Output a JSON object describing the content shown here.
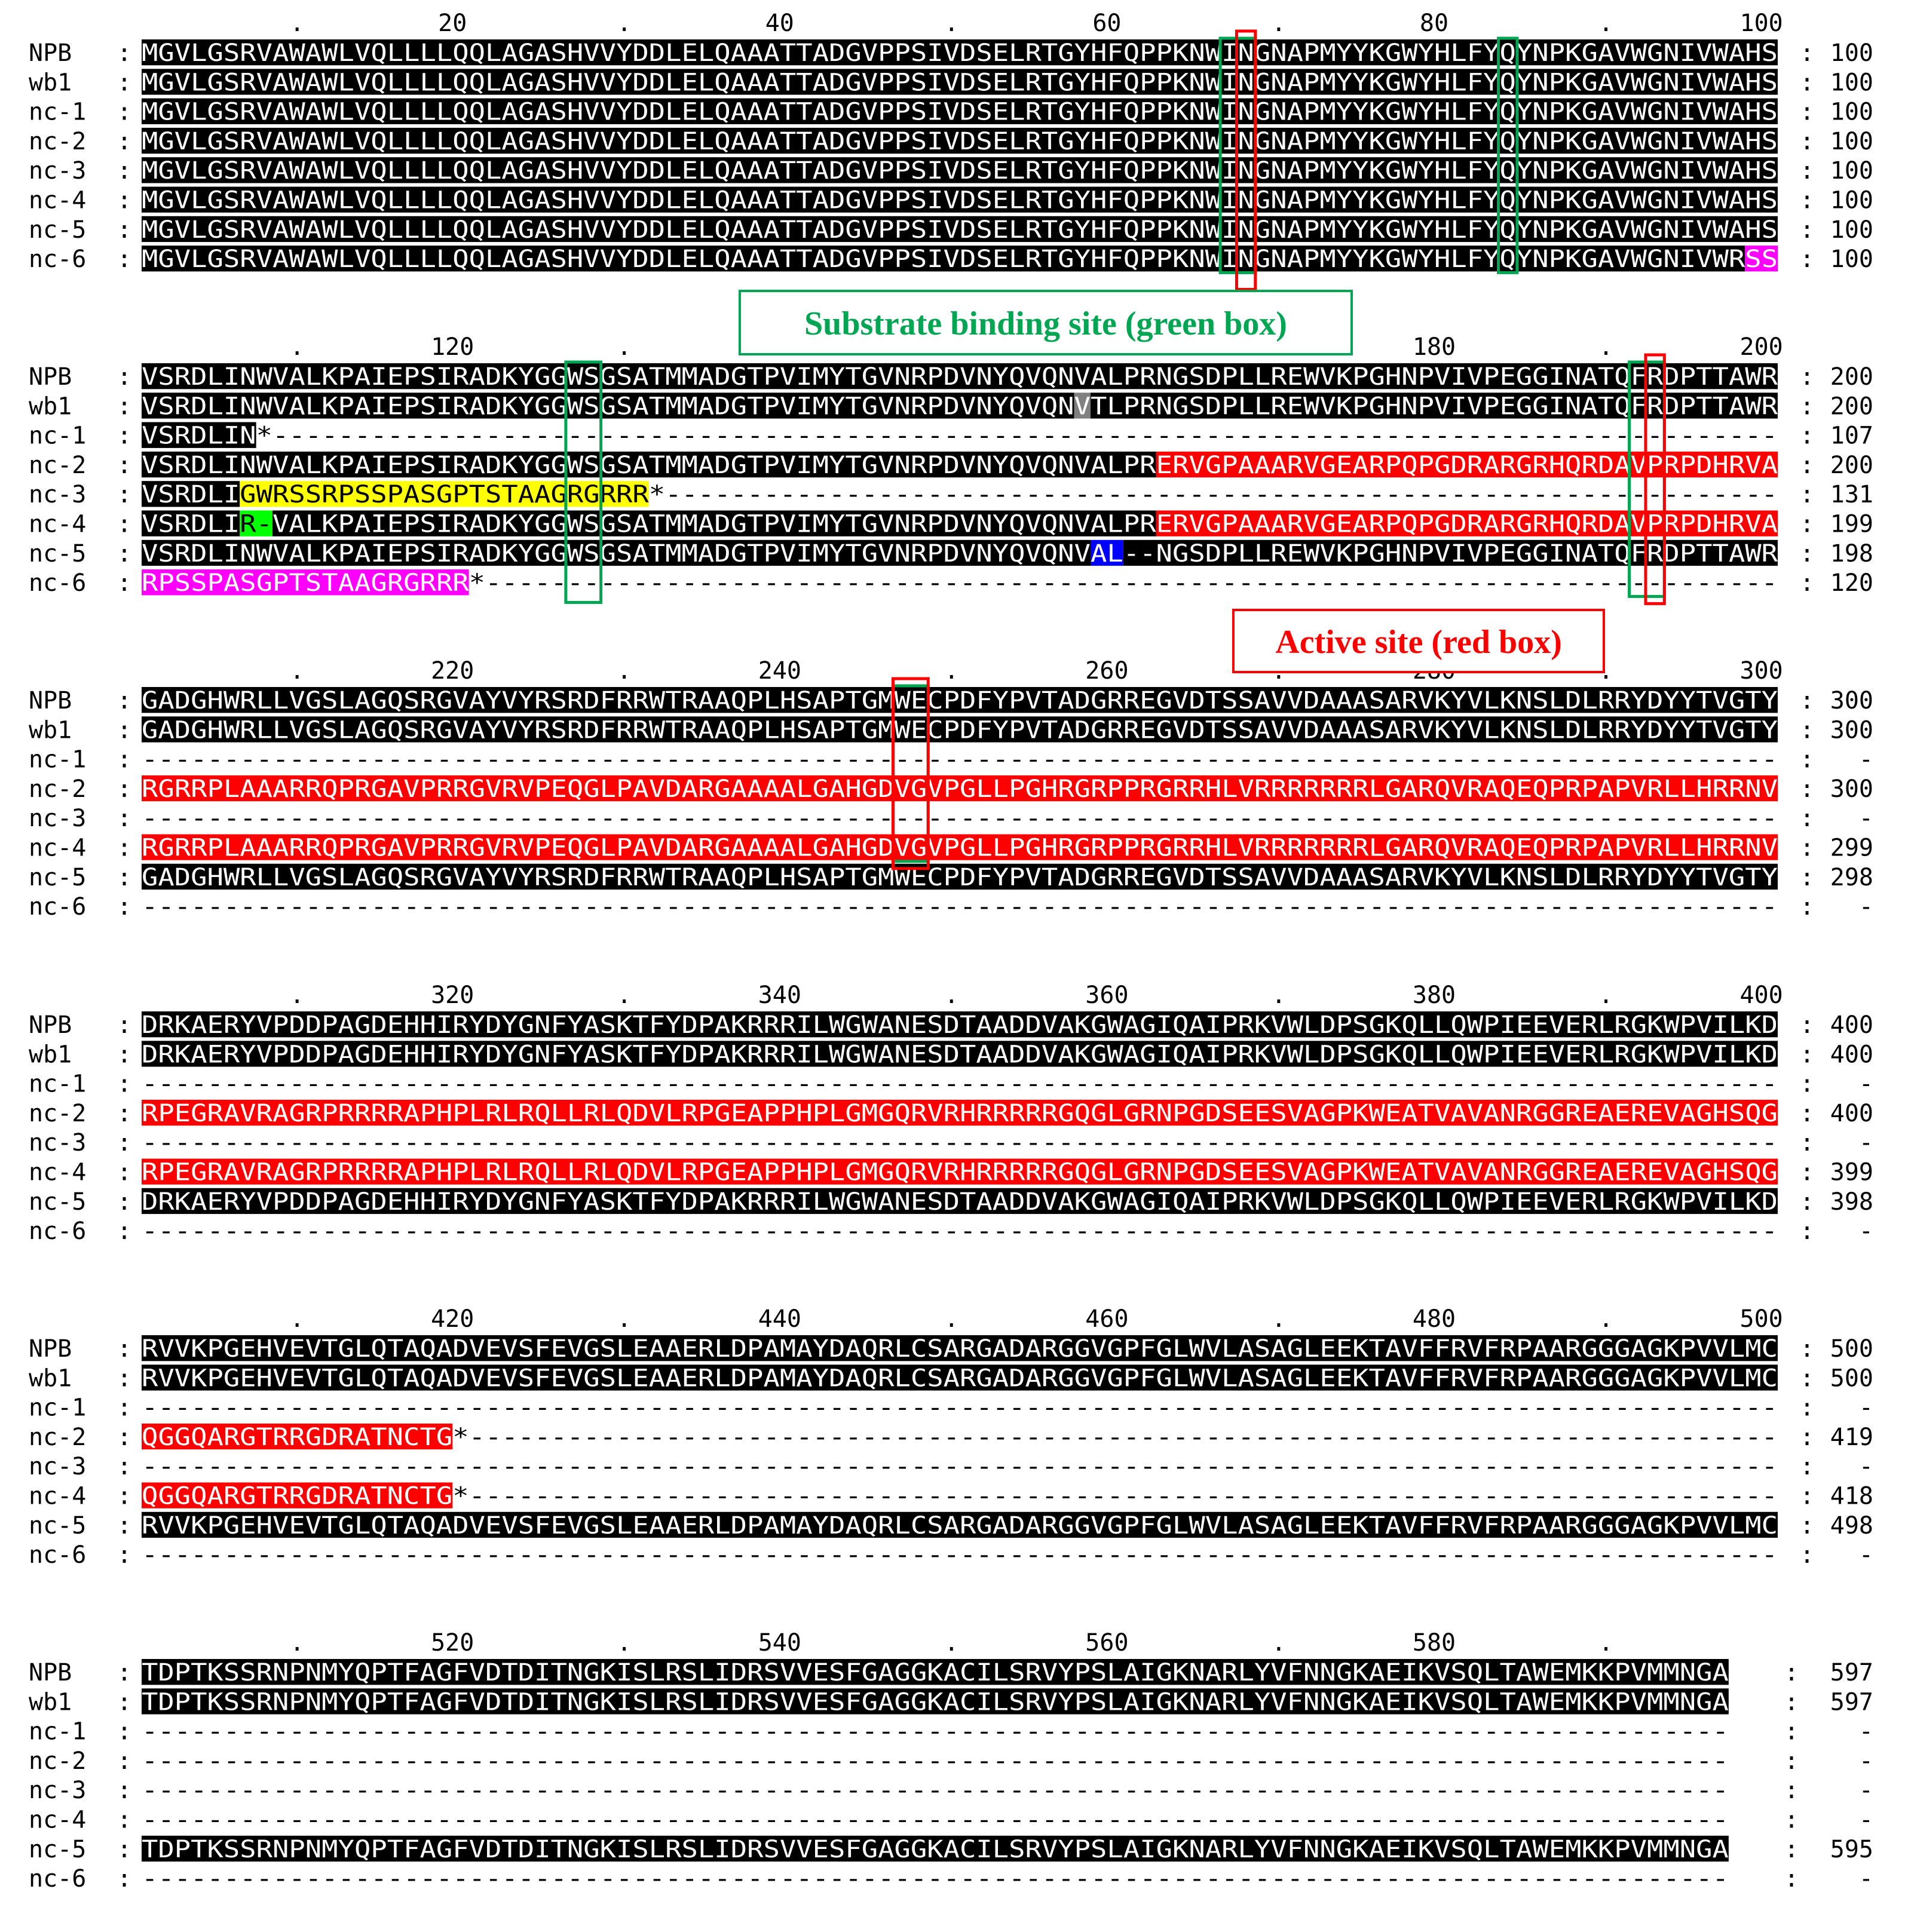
{
  "figure": {
    "labels": {
      "substrate": "Substrate binding site (green box)",
      "active": "Active site (red box)"
    },
    "colors": {
      "conserved_bg": "#000000",
      "conserved_fg": "#ffffff",
      "frameshift": "#ff0000",
      "yellow": "#ffff00",
      "green_highlight": "#00ff00",
      "magenta": "#ff00ff",
      "blue": "#0000ff",
      "gray": "#808080",
      "substrate_box": "#00a651",
      "active_box": "#ff0000"
    },
    "blocks": [
      {
        "ticks": [
          ".",
          "20",
          ".",
          "40",
          ".",
          "60",
          ".",
          "80",
          ".",
          "100"
        ],
        "rows": [
          {
            "name": "NPB",
            "seq": "MGVLGSRVAWAWLVQLLLLQQLAGASHVVYDDLELQAAATTADGVPPSIVDSELRTGYHFQPPKNWINGNAPMYYKGWYHLFYQYNPKGAVWGNIVWAHS",
            "end": "100"
          },
          {
            "name": "wb1",
            "seq": "MGVLGSRVAWAWLVQLLLLQQLAGASHVVYDDLELQAAATTADGVPPSIVDSELRTGYHFQPPKNWINGNAPMYYKGWYHLFYQYNPKGAVWGNIVWAHS",
            "end": "100"
          },
          {
            "name": "nc-1",
            "seq": "MGVLGSRVAWAWLVQLLLLQQLAGASHVVYDDLELQAAATTADGVPPSIVDSELRTGYHFQPPKNWINGNAPMYYKGWYHLFYQYNPKGAVWGNIVWAHS",
            "end": "100"
          },
          {
            "name": "nc-2",
            "seq": "MGVLGSRVAWAWLVQLLLLQQLAGASHVVYDDLELQAAATTADGVPPSIVDSELRTGYHFQPPKNWINGNAPMYYKGWYHLFYQYNPKGAVWGNIVWAHS",
            "end": "100"
          },
          {
            "name": "nc-3",
            "seq": "MGVLGSRVAWAWLVQLLLLQQLAGASHVVYDDLELQAAATTADGVPPSIVDSELRTGYHFQPPKNWINGNAPMYYKGWYHLFYQYNPKGAVWGNIVWAHS",
            "end": "100"
          },
          {
            "name": "nc-4",
            "seq": "MGVLGSRVAWAWLVQLLLLQQLAGASHVVYDDLELQAAATTADGVPPSIVDSELRTGYHFQPPKNWINGNAPMYYKGWYHLFYQYNPKGAVWGNIVWAHS",
            "end": "100"
          },
          {
            "name": "nc-5",
            "seq": "MGVLGSRVAWAWLVQLLLLQQLAGASHVVYDDLELQAAATTADGVPPSIVDSELRTGYHFQPPKNWINGNAPMYYKGWYHLFYQYNPKGAVWGNIVWAHS",
            "end": "100"
          },
          {
            "name": "nc-6",
            "seq": "MGVLGSRVAWAWLVQLLLLQQLAGASHVVYDDLELQAAATTADGVPPSIVDSELRTGYHFQPPKNWINGNAPMYYKGWYHLFYQYNPKGAVWGNIVWRSS",
            "end": "100"
          }
        ]
      },
      {
        "ticks": [
          ".",
          "120",
          ".",
          "140",
          ".",
          "160",
          ".",
          "180",
          ".",
          "200"
        ],
        "rows": [
          {
            "name": "NPB",
            "seq": "VSRDLINWVALKPAIEPSIRADKYGGWSGSATMMADGTPVIMYTGVNRPDVNYQVQNVALPRNGSDPLLREWVKPGHNPVIVPEGGINATQFRDPTTAWR",
            "end": "200"
          },
          {
            "name": "wb1",
            "seq": "VSRDLINWVALKPAIEPSIRADKYGGWSGSATMMADGTPVIMYTGVNRPDVNYQVQNVTLPRNGSDPLLREWVKPGHNPVIVPEGGINATQFRDPTTAWR",
            "end": "200"
          },
          {
            "name": "nc-1",
            "seq": "VSRDLIN*--------------------------------------------------------------------------------------------",
            "end": "107"
          },
          {
            "name": "nc-2",
            "seq": "VSRDLINWVALKPAIEPSIRADKYGGWSGSATMMADGTPVIMYTGVNRPDVNYQVQNVALPRERVGPAAARVGEARPQPGDRARGRHQRDAVPRPDHRVA",
            "end": "200"
          },
          {
            "name": "nc-3",
            "seq": "VSRDLIGWRSSRPSSPASGPTSTAAGRGRRR*--------------------------------------------------------------------",
            "end": "131"
          },
          {
            "name": "nc-4",
            "seq": "VSRDLIR-VALKPAIEPSIRADKYGGWSGSATMMADGTPVIMYTGVNRPDVNYQVQNVALPRERVGPAAARVGEARPQPGDRARGRHQRDAVPRPDHRVA",
            "end": "199"
          },
          {
            "name": "nc-5",
            "seq": "VSRDLINWVALKPAIEPSIRADKYGGWSGSATMMADGTPVIMYTGVNRPDVNYQVQNVAL--NGSDPLLREWVKPGHNPVIVPEGGINATQFRDPTTAWR",
            "end": "198"
          },
          {
            "name": "nc-6",
            "seq": "RPSSPASGPTSTAAGRGRRR*-------------------------------------------------------------------------------",
            "end": "120"
          }
        ]
      },
      {
        "ticks": [
          ".",
          "220",
          ".",
          "240",
          ".",
          "260",
          ".",
          "280",
          ".",
          "300"
        ],
        "rows": [
          {
            "name": "NPB",
            "seq": "GADGHWRLLVGSLAGQSRGVAYVYRSRDFRRWTRAAQPLHSAPTGMWECPDFYPVTADGRREGVDTSSAVVDAAASARVKYVLKNSLDLRRYDYYTVGTY",
            "end": "300"
          },
          {
            "name": "wb1",
            "seq": "GADGHWRLLVGSLAGQSRGVAYVYRSRDFRRWTRAAQPLHSAPTGMWECPDFYPVTADGRREGVDTSSAVVDAAASARVKYVLKNSLDLRRYDYYTVGTY",
            "end": "300"
          },
          {
            "name": "nc-1",
            "seq": "----------------------------------------------------------------------------------------------------",
            "end": "-"
          },
          {
            "name": "nc-2",
            "seq": "RGRRPLAAARRQPRGAVPRRGVRVPEQGLPAVDARGAAAALGAHGDVGVPGLLPGHRGRPPRGRRHLVRRRRRRRLGARQVRAQEQPRPAPVRLLHRRNV",
            "end": "300"
          },
          {
            "name": "nc-3",
            "seq": "----------------------------------------------------------------------------------------------------",
            "end": "-"
          },
          {
            "name": "nc-4",
            "seq": "RGRRPLAAARRQPRGAVPRRGVRVPEQGLPAVDARGAAAALGAHGDVGVPGLLPGHRGRPPRGRRHLVRRRRRRRLGARQVRAQEQPRPAPVRLLHRRNV",
            "end": "299"
          },
          {
            "name": "nc-5",
            "seq": "GADGHWRLLVGSLAGQSRGVAYVYRSRDFRRWTRAAQPLHSAPTGMWECPDFYPVTADGRREGVDTSSAVVDAAASARVKYVLKNSLDLRRYDYYTVGTY",
            "end": "298"
          },
          {
            "name": "nc-6",
            "seq": "----------------------------------------------------------------------------------------------------",
            "end": "-"
          }
        ]
      },
      {
        "ticks": [
          ".",
          "320",
          ".",
          "340",
          ".",
          "360",
          ".",
          "380",
          ".",
          "400"
        ],
        "rows": [
          {
            "name": "NPB",
            "seq": "DRKAERYVPDDPAGDEHHIRYDYGNFYASKTFYDPAKRRRILWGWANESDTAADDVAKGWAGIQAIPRKVWLDPSGKQLLQWPIEEVERLRGKWPVILKD",
            "end": "400"
          },
          {
            "name": "wb1",
            "seq": "DRKAERYVPDDPAGDEHHIRYDYGNFYASKTFYDPAKRRRILWGWANESDTAADDVAKGWAGIQAIPRKVWLDPSGKQLLQWPIEEVERLRGKWPVILKD",
            "end": "400"
          },
          {
            "name": "nc-1",
            "seq": "----------------------------------------------------------------------------------------------------",
            "end": "-"
          },
          {
            "name": "nc-2",
            "seq": "RPEGRAVRAGRPRRRRAPHPLRLRQLLRLQDVLRPGEAPPHPLGMGQRVRHRRRRRGQGLGRNPGDSEESVAGPKWEATVAVANRGGREAEREVAGHSQG",
            "end": "400"
          },
          {
            "name": "nc-3",
            "seq": "----------------------------------------------------------------------------------------------------",
            "end": "-"
          },
          {
            "name": "nc-4",
            "seq": "RPEGRAVRAGRPRRRRAPHPLRLRQLLRLQDVLRPGEAPPHPLGMGQRVRHRRRRRGQGLGRNPGDSEESVAGPKWEATVAVANRGGREAEREVAGHSQG",
            "end": "399"
          },
          {
            "name": "nc-5",
            "seq": "DRKAERYVPDDPAGDEHHIRYDYGNFYASKTFYDPAKRRRILWGWANESDTAADDVAKGWAGIQAIPRKVWLDPSGKQLLQWPIEEVERLRGKWPVILKD",
            "end": "398"
          },
          {
            "name": "nc-6",
            "seq": "----------------------------------------------------------------------------------------------------",
            "end": "-"
          }
        ]
      },
      {
        "ticks": [
          ".",
          "420",
          ".",
          "440",
          ".",
          "460",
          ".",
          "480",
          ".",
          "500"
        ],
        "rows": [
          {
            "name": "NPB",
            "seq": "RVVKPGEHVEVTGLQTAQADVEVSFEVGSLEAAERLDPAMAYDAQRLCSARGADARGGVGPFGLWVLASAGLEEKTAVFFRVFRPAARGGGAGKPVVLMC",
            "end": "500"
          },
          {
            "name": "wb1",
            "seq": "RVVKPGEHVEVTGLQTAQADVEVSFEVGSLEAAERLDPAMAYDAQRLCSARGADARGGVGPFGLWVLASAGLEEKTAVFFRVFRPAARGGGAGKPVVLMC",
            "end": "500"
          },
          {
            "name": "nc-1",
            "seq": "----------------------------------------------------------------------------------------------------",
            "end": "-"
          },
          {
            "name": "nc-2",
            "seq": "QGGQARGTRRGDRATNCTG*--------------------------------------------------------------------------------",
            "end": "419"
          },
          {
            "name": "nc-3",
            "seq": "----------------------------------------------------------------------------------------------------",
            "end": "-"
          },
          {
            "name": "nc-4",
            "seq": "QGGQARGTRRGDRATNCTG*--------------------------------------------------------------------------------",
            "end": "418"
          },
          {
            "name": "nc-5",
            "seq": "RVVKPGEHVEVTGLQTAQADVEVSFEVGSLEAAERLDPAMAYDAQRLCSARGADARGGVGPFGLWVLASAGLEEKTAVFFRVFRPAARGGGAGKPVVLMC",
            "end": "498"
          },
          {
            "name": "nc-6",
            "seq": "----------------------------------------------------------------------------------------------------",
            "end": "-"
          }
        ]
      },
      {
        "ticks": [
          ".",
          "520",
          ".",
          "540",
          ".",
          "560",
          ".",
          "580",
          "."
        ],
        "rows": [
          {
            "name": "NPB",
            "seq": "TDPTKSSRNPNMYQPTFAGFVDTDITNGKISLRSLIDRSVVESFGAGGKACILSRVYPSLAIGKNARLYVFNNGKAEIKVSQLTAWEMKKPVMMNGA",
            "end": "597"
          },
          {
            "name": "wb1",
            "seq": "TDPTKSSRNPNMYQPTFAGFVDTDITNGKISLRSLIDRSVVESFGAGGKACILSRVYPSLAIGKNARLYVFNNGKAEIKVSQLTAWEMKKPVMMNGA",
            "end": "597"
          },
          {
            "name": "nc-1",
            "seq": "-------------------------------------------------------------------------------------------------",
            "end": "-"
          },
          {
            "name": "nc-2",
            "seq": "-------------------------------------------------------------------------------------------------",
            "end": "-"
          },
          {
            "name": "nc-3",
            "seq": "-------------------------------------------------------------------------------------------------",
            "end": "-"
          },
          {
            "name": "nc-4",
            "seq": "-------------------------------------------------------------------------------------------------",
            "end": "-"
          },
          {
            "name": "nc-5",
            "seq": "TDPTKSSRNPNMYQPTFAGFVDTDITNGKISLRSLIDRSVVESFGAGGKACILSRVYPSLAIGKNARLYVFNNGKAEIKVSQLTAWEMKKPVMMNGA",
            "end": "595"
          },
          {
            "name": "nc-6",
            "seq": "-------------------------------------------------------------------------------------------------",
            "end": "-"
          }
        ]
      }
    ]
  }
}
